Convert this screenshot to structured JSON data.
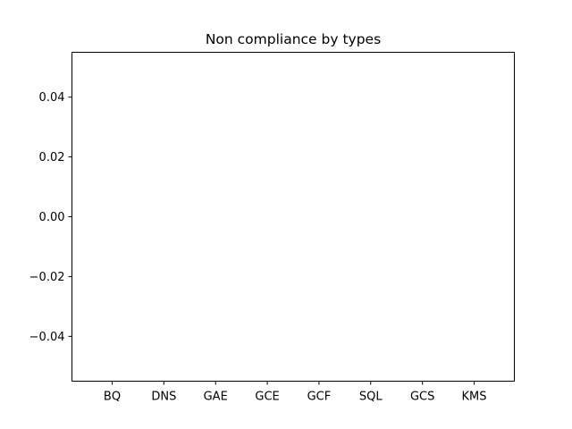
{
  "chart_data": {
    "type": "bar",
    "title": "Non compliance by types",
    "xlabel": "",
    "ylabel": "",
    "categories": [
      "BQ",
      "DNS",
      "GAE",
      "GCE",
      "GCF",
      "SQL",
      "GCS",
      "KMS"
    ],
    "values": [
      0,
      0,
      0,
      0,
      0,
      0,
      0,
      0
    ],
    "ylim": [
      -0.055,
      0.055
    ],
    "yticks": [
      0.04,
      0.02,
      0.0,
      -0.02,
      -0.04
    ],
    "ytick_labels": [
      "0.04",
      "0.02",
      "0.00",
      "−0.02",
      "−0.04"
    ],
    "grid": false,
    "legend": "none",
    "colors": {
      "axis": "#000000",
      "background": "#ffffff",
      "bar": "#1f77b4"
    }
  }
}
